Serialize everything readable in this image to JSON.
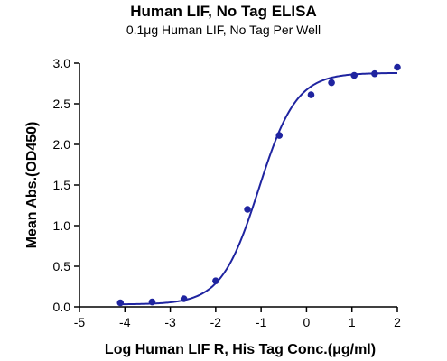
{
  "chart_data": {
    "type": "scatter",
    "title": "Human LIF, No Tag ELISA",
    "subtitle": "0.1μg Human LIF, No Tag Per Well",
    "xlabel": "Log Human LIF R, His Tag Conc.(μg/ml)",
    "ylabel": "Mean Abs.(OD450)",
    "xlim": [
      -5,
      2
    ],
    "ylim": [
      0,
      3.0
    ],
    "xticks": [
      "-5",
      "-4",
      "-3",
      "-2",
      "-1",
      "0",
      "1",
      "2"
    ],
    "yticks": [
      "0.0",
      "0.5",
      "1.0",
      "1.5",
      "2.0",
      "2.5",
      "3.0"
    ],
    "grid": false,
    "colors": {
      "series": "#1f24a0",
      "axis": "#000000"
    },
    "series": [
      {
        "points": [
          {
            "x": -4.1,
            "y": 0.05
          },
          {
            "x": -3.4,
            "y": 0.06
          },
          {
            "x": -2.7,
            "y": 0.1
          },
          {
            "x": -2.0,
            "y": 0.32
          },
          {
            "x": -1.3,
            "y": 1.2
          },
          {
            "x": -0.6,
            "y": 2.11
          },
          {
            "x": 0.1,
            "y": 2.61
          },
          {
            "x": 0.55,
            "y": 2.76
          },
          {
            "x": 1.05,
            "y": 2.85
          },
          {
            "x": 1.5,
            "y": 2.87
          },
          {
            "x": 2.0,
            "y": 2.95
          }
        ],
        "fit": {
          "model": "4PL",
          "bottom": 0.03,
          "top": 2.88,
          "logEC50": -1.05,
          "hill": 1.05
        }
      }
    ]
  }
}
